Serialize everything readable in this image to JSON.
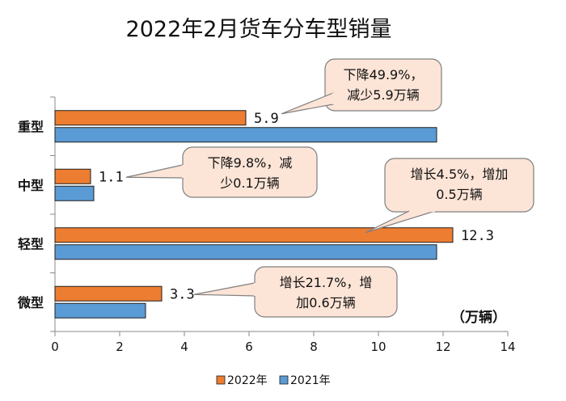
{
  "chart_data": {
    "type": "bar",
    "orientation": "horizontal",
    "title": "2022年2月货车分车型销量",
    "unit_label": "（万辆）",
    "categories": [
      "重型",
      "中型",
      "轻型",
      "微型"
    ],
    "series": [
      {
        "name": "2022年",
        "color": "#ED7D31",
        "values": [
          5.9,
          1.1,
          12.3,
          3.3
        ],
        "labels": [
          "5.9",
          "1.1",
          "12.3",
          "3.3"
        ]
      },
      {
        "name": "2021年",
        "color": "#5B9BD5",
        "values": [
          11.8,
          1.2,
          11.8,
          2.8
        ]
      }
    ],
    "xlim": [
      0,
      14
    ],
    "xticks": [
      0,
      2,
      4,
      6,
      8,
      10,
      12,
      14
    ],
    "grid": false,
    "legend_position": "bottom-center",
    "annotations": [
      {
        "category": "重型",
        "lines": [
          "下降49.9%，",
          "减少5.9万辆"
        ]
      },
      {
        "category": "中型",
        "lines": [
          "下降9.8%，减",
          "少0.1万辆"
        ]
      },
      {
        "category": "轻型",
        "lines": [
          "增长4.5%，增加",
          "0.5万辆"
        ]
      },
      {
        "category": "微型",
        "lines": [
          "增长21.7%，增",
          "加0.6万辆"
        ]
      }
    ]
  }
}
